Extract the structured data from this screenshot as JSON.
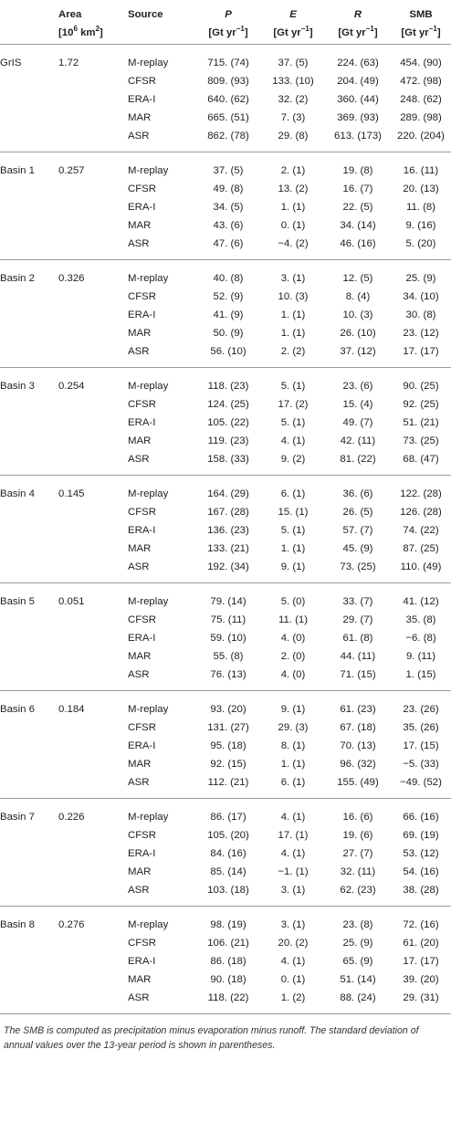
{
  "header": {
    "area_title": "Area",
    "area_unit_base": "[10",
    "area_unit_exp": "6",
    "area_unit_mid": " km",
    "area_unit_exp2": "2",
    "area_unit_end": "]",
    "source_title": "Source",
    "p_title": "P",
    "e_title": "E",
    "r_title": "R",
    "smb_title": "SMB",
    "flux_unit_base": "[Gt yr",
    "flux_unit_exp": "−1",
    "flux_unit_end": "]"
  },
  "groups": [
    {
      "region": "GrIS",
      "area": "1.72",
      "rows": [
        {
          "source": "M-replay",
          "p": "715. (74)",
          "e": "37. (5)",
          "r": "224. (63)",
          "smb": "454. (90)"
        },
        {
          "source": "CFSR",
          "p": "809. (93)",
          "e": "133. (10)",
          "r": "204. (49)",
          "smb": "472. (98)"
        },
        {
          "source": "ERA-I",
          "p": "640. (62)",
          "e": "32. (2)",
          "r": "360. (44)",
          "smb": "248. (62)"
        },
        {
          "source": "MAR",
          "p": "665. (51)",
          "e": "7. (3)",
          "r": "369. (93)",
          "smb": "289. (98)"
        },
        {
          "source": "ASR",
          "p": "862. (78)",
          "e": "29. (8)",
          "r": "613. (173)",
          "smb": "220. (204)"
        }
      ]
    },
    {
      "region": "Basin 1",
      "area": "0.257",
      "rows": [
        {
          "source": "M-replay",
          "p": "37. (5)",
          "e": "2. (1)",
          "r": "19. (8)",
          "smb": "16. (11)"
        },
        {
          "source": "CFSR",
          "p": "49. (8)",
          "e": "13. (2)",
          "r": "16. (7)",
          "smb": "20. (13)"
        },
        {
          "source": "ERA-I",
          "p": "34. (5)",
          "e": "1. (1)",
          "r": "22. (5)",
          "smb": "11. (8)"
        },
        {
          "source": "MAR",
          "p": "43. (6)",
          "e": "0. (1)",
          "r": "34. (14)",
          "smb": "9. (16)"
        },
        {
          "source": "ASR",
          "p": "47. (6)",
          "e": "−4. (2)",
          "r": "46. (16)",
          "smb": "5. (20)"
        }
      ]
    },
    {
      "region": "Basin 2",
      "area": "0.326",
      "rows": [
        {
          "source": "M-replay",
          "p": "40. (8)",
          "e": "3. (1)",
          "r": "12. (5)",
          "smb": "25. (9)"
        },
        {
          "source": "CFSR",
          "p": "52. (9)",
          "e": "10. (3)",
          "r": "8. (4)",
          "smb": "34. (10)"
        },
        {
          "source": "ERA-I",
          "p": "41. (9)",
          "e": "1. (1)",
          "r": "10. (3)",
          "smb": "30. (8)"
        },
        {
          "source": "MAR",
          "p": "50. (9)",
          "e": "1. (1)",
          "r": "26. (10)",
          "smb": "23. (12)"
        },
        {
          "source": "ASR",
          "p": "56. (10)",
          "e": "2. (2)",
          "r": "37. (12)",
          "smb": "17. (17)"
        }
      ]
    },
    {
      "region": "Basin 3",
      "area": "0.254",
      "rows": [
        {
          "source": "M-replay",
          "p": "118. (23)",
          "e": "5. (1)",
          "r": "23. (6)",
          "smb": "90. (25)"
        },
        {
          "source": "CFSR",
          "p": "124. (25)",
          "e": "17. (2)",
          "r": "15. (4)",
          "smb": "92. (25)"
        },
        {
          "source": "ERA-I",
          "p": "105. (22)",
          "e": "5. (1)",
          "r": "49. (7)",
          "smb": "51. (21)"
        },
        {
          "source": "MAR",
          "p": "119. (23)",
          "e": "4. (1)",
          "r": "42. (11)",
          "smb": "73. (25)"
        },
        {
          "source": "ASR",
          "p": "158. (33)",
          "e": "9. (2)",
          "r": "81. (22)",
          "smb": "68. (47)"
        }
      ]
    },
    {
      "region": "Basin 4",
      "area": "0.145",
      "rows": [
        {
          "source": "M-replay",
          "p": "164. (29)",
          "e": "6. (1)",
          "r": "36. (6)",
          "smb": "122. (28)"
        },
        {
          "source": "CFSR",
          "p": "167. (28)",
          "e": "15. (1)",
          "r": "26. (5)",
          "smb": "126. (28)"
        },
        {
          "source": "ERA-I",
          "p": "136. (23)",
          "e": "5. (1)",
          "r": "57. (7)",
          "smb": "74. (22)"
        },
        {
          "source": "MAR",
          "p": "133. (21)",
          "e": "1. (1)",
          "r": "45. (9)",
          "smb": "87. (25)"
        },
        {
          "source": "ASR",
          "p": "192. (34)",
          "e": "9. (1)",
          "r": "73. (25)",
          "smb": "110. (49)"
        }
      ]
    },
    {
      "region": "Basin 5",
      "area": "0.051",
      "rows": [
        {
          "source": "M-replay",
          "p": "79. (14)",
          "e": "5. (0)",
          "r": "33. (7)",
          "smb": "41. (12)"
        },
        {
          "source": "CFSR",
          "p": "75. (11)",
          "e": "11. (1)",
          "r": "29. (7)",
          "smb": "35. (8)"
        },
        {
          "source": "ERA-I",
          "p": "59. (10)",
          "e": "4. (0)",
          "r": "61. (8)",
          "smb": "−6. (8)"
        },
        {
          "source": "MAR",
          "p": "55. (8)",
          "e": "2. (0)",
          "r": "44. (11)",
          "smb": "9. (11)"
        },
        {
          "source": "ASR",
          "p": "76. (13)",
          "e": "4. (0)",
          "r": "71. (15)",
          "smb": "1. (15)"
        }
      ]
    },
    {
      "region": "Basin 6",
      "area": "0.184",
      "rows": [
        {
          "source": "M-replay",
          "p": "93. (20)",
          "e": "9. (1)",
          "r": "61. (23)",
          "smb": "23. (26)"
        },
        {
          "source": "CFSR",
          "p": "131. (27)",
          "e": "29. (3)",
          "r": "67. (18)",
          "smb": "35. (26)"
        },
        {
          "source": "ERA-I",
          "p": "95. (18)",
          "e": "8. (1)",
          "r": "70. (13)",
          "smb": "17. (15)"
        },
        {
          "source": "MAR",
          "p": "92. (15)",
          "e": "1. (1)",
          "r": "96. (32)",
          "smb": "−5. (33)"
        },
        {
          "source": "ASR",
          "p": "112. (21)",
          "e": "6. (1)",
          "r": "155. (49)",
          "smb": "−49. (52)"
        }
      ]
    },
    {
      "region": "Basin 7",
      "area": "0.226",
      "rows": [
        {
          "source": "M-replay",
          "p": "86. (17)",
          "e": "4. (1)",
          "r": "16. (6)",
          "smb": "66. (16)"
        },
        {
          "source": "CFSR",
          "p": "105. (20)",
          "e": "17. (1)",
          "r": "19. (6)",
          "smb": "69. (19)"
        },
        {
          "source": "ERA-I",
          "p": "84. (16)",
          "e": "4. (1)",
          "r": "27. (7)",
          "smb": "53. (12)"
        },
        {
          "source": "MAR",
          "p": "85. (14)",
          "e": "−1. (1)",
          "r": "32. (11)",
          "smb": "54. (16)"
        },
        {
          "source": "ASR",
          "p": "103. (18)",
          "e": "3. (1)",
          "r": "62. (23)",
          "smb": "38. (28)"
        }
      ]
    },
    {
      "region": "Basin 8",
      "area": "0.276",
      "rows": [
        {
          "source": "M-replay",
          "p": "98. (19)",
          "e": "3. (1)",
          "r": "23. (8)",
          "smb": "72. (16)"
        },
        {
          "source": "CFSR",
          "p": "106. (21)",
          "e": "20. (2)",
          "r": "25. (9)",
          "smb": "61. (20)"
        },
        {
          "source": "ERA-I",
          "p": "86. (18)",
          "e": "4. (1)",
          "r": "65. (9)",
          "smb": "17. (17)"
        },
        {
          "source": "MAR",
          "p": "90. (18)",
          "e": "0. (1)",
          "r": "51. (14)",
          "smb": "39. (20)"
        },
        {
          "source": "ASR",
          "p": "118. (22)",
          "e": "1. (2)",
          "r": "88. (24)",
          "smb": "29. (31)"
        }
      ]
    }
  ],
  "caption": "The SMB is computed as precipitation minus evaporation minus runoff. The standard deviation of annual values over the 13-year period is shown in parentheses."
}
